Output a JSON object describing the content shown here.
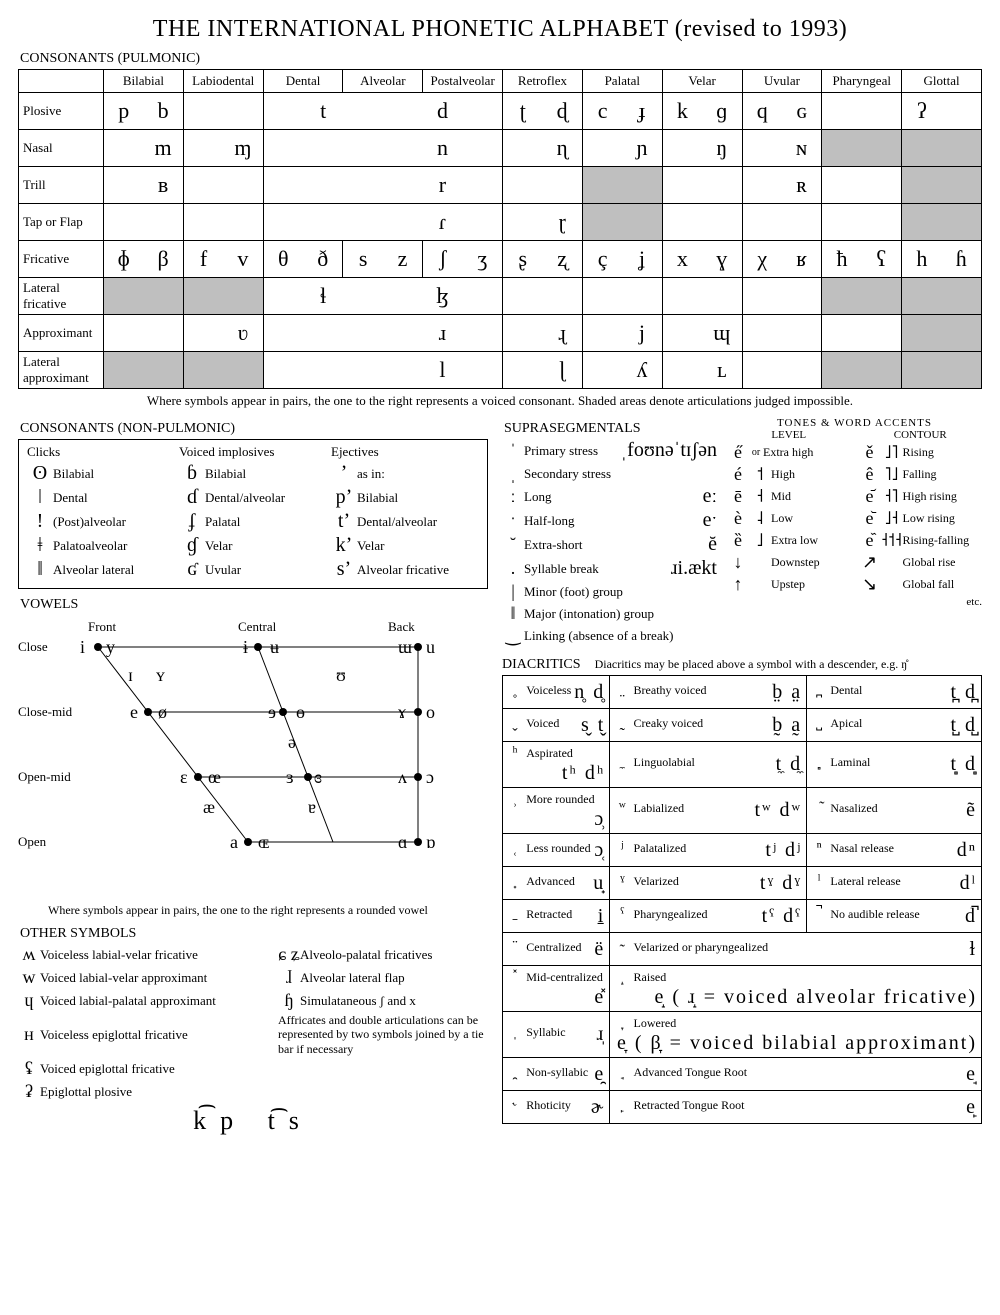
{
  "title": "THE INTERNATIONAL PHONETIC ALPHABET (revised to 1993)",
  "pulmonic": {
    "heading": "CONSONANTS (PULMONIC)",
    "cols": [
      "Bilabial",
      "Labiodental",
      "Dental",
      "Alveolar",
      "Postalveolar",
      "Retroflex",
      "Palatal",
      "Velar",
      "Uvular",
      "Pharyngeal",
      "Glottal"
    ],
    "rows": [
      {
        "label": "Plosive",
        "cells": [
          [
            "p",
            "b"
          ],
          [
            "",
            ""
          ],
          [
            "t",
            "d",
            "span3"
          ],
          null,
          null,
          [
            "ʈ",
            "ɖ"
          ],
          [
            "c",
            "ɟ"
          ],
          [
            "k",
            "ɡ"
          ],
          [
            "q",
            "ɢ"
          ],
          [
            "",
            "",
            "halfshade-r"
          ],
          [
            "ʔ",
            "",
            "halfshade-r"
          ]
        ]
      },
      {
        "label": "Nasal",
        "cells": [
          [
            "",
            "m"
          ],
          [
            "",
            "ɱ"
          ],
          [
            "",
            "n",
            "span3"
          ],
          null,
          null,
          [
            "",
            "ɳ"
          ],
          [
            "",
            "ɲ"
          ],
          [
            "",
            "ŋ"
          ],
          [
            "",
            "ɴ"
          ],
          [
            "",
            "",
            "shade"
          ],
          [
            "",
            "",
            "shade"
          ]
        ]
      },
      {
        "label": "Trill",
        "cells": [
          [
            "",
            "ʙ"
          ],
          [
            "",
            ""
          ],
          [
            "",
            "r",
            "span3"
          ],
          null,
          null,
          [
            "",
            ""
          ],
          [
            "",
            "",
            "shade"
          ],
          [
            "",
            ""
          ],
          [
            "",
            "ʀ"
          ],
          [
            "",
            ""
          ],
          [
            "",
            "",
            "shade"
          ]
        ]
      },
      {
        "label": "Tap or Flap",
        "cells": [
          [
            "",
            ""
          ],
          [
            "",
            ""
          ],
          [
            "",
            "ɾ",
            "span3"
          ],
          null,
          null,
          [
            "",
            "ɽ"
          ],
          [
            "",
            "",
            "shade"
          ],
          [
            "",
            ""
          ],
          [
            "",
            ""
          ],
          [
            "",
            ""
          ],
          [
            "",
            "",
            "shade"
          ]
        ]
      },
      {
        "label": "Fricative",
        "cells": [
          [
            "ɸ",
            "β"
          ],
          [
            "f",
            "v"
          ],
          [
            "θ",
            "ð"
          ],
          [
            "s",
            "z"
          ],
          [
            "ʃ",
            "ʒ"
          ],
          [
            "ʂ",
            "ʐ"
          ],
          [
            "ç",
            "ʝ"
          ],
          [
            "x",
            "ɣ"
          ],
          [
            "χ",
            "ʁ"
          ],
          [
            "ħ",
            "ʕ"
          ],
          [
            "h",
            "ɦ"
          ]
        ]
      },
      {
        "label": "Lateral fricative",
        "cells": [
          [
            "",
            "",
            "shade"
          ],
          [
            "",
            "",
            "shade"
          ],
          [
            "ɬ",
            "ɮ",
            "span3"
          ],
          null,
          null,
          [
            "",
            ""
          ],
          [
            "",
            ""
          ],
          [
            "",
            ""
          ],
          [
            "",
            ""
          ],
          [
            "",
            "",
            "shade"
          ],
          [
            "",
            "",
            "shade"
          ]
        ]
      },
      {
        "label": "Approximant",
        "cells": [
          [
            "",
            ""
          ],
          [
            "",
            "ʋ"
          ],
          [
            "",
            "ɹ",
            "span3"
          ],
          null,
          null,
          [
            "",
            "ɻ"
          ],
          [
            "",
            "j"
          ],
          [
            "",
            "ɰ"
          ],
          [
            "",
            ""
          ],
          [
            "",
            ""
          ],
          [
            "",
            "",
            "shade"
          ]
        ]
      },
      {
        "label": "Lateral approximant",
        "cells": [
          [
            "",
            "",
            "shade"
          ],
          [
            "",
            "",
            "shade"
          ],
          [
            "",
            "l",
            "span3"
          ],
          null,
          null,
          [
            "",
            "ɭ"
          ],
          [
            "",
            "ʎ"
          ],
          [
            "",
            "ʟ"
          ],
          [
            "",
            ""
          ],
          [
            "",
            "",
            "shade"
          ],
          [
            "",
            "",
            "shade"
          ]
        ]
      }
    ],
    "caption": "Where symbols appear in pairs, the one to the right represents a voiced consonant. Shaded areas denote articulations judged impossible."
  },
  "nonpulmonic": {
    "heading": "CONSONANTS (NON-PULMONIC)",
    "clicks": {
      "hdr": "Clicks",
      "rows": [
        [
          "ʘ",
          "Bilabial"
        ],
        [
          "ǀ",
          "Dental"
        ],
        [
          "ǃ",
          "(Post)alveolar"
        ],
        [
          "ǂ",
          "Palatoalveolar"
        ],
        [
          "ǁ",
          "Alveolar lateral"
        ]
      ]
    },
    "implosives": {
      "hdr": "Voiced implosives",
      "rows": [
        [
          "ɓ",
          "Bilabial"
        ],
        [
          "ɗ",
          "Dental/alveolar"
        ],
        [
          "ʄ",
          "Palatal"
        ],
        [
          "ɠ",
          "Velar"
        ],
        [
          "ʛ",
          "Uvular"
        ]
      ]
    },
    "ejectives": {
      "hdr": "Ejectives",
      "asin": "as in:",
      "rows": [
        [
          "pʼ",
          "Bilabial"
        ],
        [
          "tʼ",
          "Dental/alveolar"
        ],
        [
          "kʼ",
          "Velar"
        ],
        [
          "sʼ",
          "Alveolar fricative"
        ]
      ]
    }
  },
  "vowels": {
    "heading": "VOWELS",
    "top_labels": [
      "Front",
      "Central",
      "Back"
    ],
    "left_labels": [
      "Close",
      "Close-mid",
      "Open-mid",
      "Open"
    ],
    "note": "Where symbols appear in pairs, the one to the right represents a rounded vowel"
  },
  "other": {
    "heading": "OTHER SYMBOLS",
    "rows": [
      [
        "ʍ",
        "Voiceless labial-velar fricative",
        "ɕ ʑ",
        "Alveolo-palatal fricatives"
      ],
      [
        "w",
        "Voiced labial-velar approximant",
        "ɺ",
        "Alveolar lateral flap"
      ],
      [
        "ɥ",
        "Voiced labial-palatal approximant",
        "ɧ",
        "Simulataneous ʃ and x"
      ],
      [
        "ʜ",
        "Voiceless epiglottal fricative",
        "",
        ""
      ],
      [
        "ʢ",
        "Voiced epiglottal fricative",
        "",
        ""
      ],
      [
        "ʡ",
        "Epiglottal plosive",
        "",
        ""
      ]
    ],
    "note": "Affricates and double articulations can be represented by two symbols joined by a tie bar if necessary",
    "affricate": "k͡p  t͡s"
  },
  "supra": {
    "heading": "SUPRASEGMENTALS",
    "example1": "ˌfoʊnəˈtɪʃən",
    "list": [
      [
        "ˈ",
        "Primary stress"
      ],
      [
        "ˌ",
        "Secondary stress"
      ],
      [
        "ː",
        "Long",
        "eː"
      ],
      [
        "ˑ",
        "Half-long",
        "eˑ"
      ],
      [
        "˘",
        "Extra-short",
        "ĕ"
      ],
      [
        ".",
        "Syllable break",
        "ɹi.ækt"
      ],
      [
        "|",
        "Minor (foot) group"
      ],
      [
        "‖",
        "Major (intonation) group"
      ],
      [
        "‿",
        "Linking (absence of a break)"
      ]
    ]
  },
  "tones": {
    "heading": "TONES & WORD ACCENTS",
    "level": {
      "hdr": "LEVEL",
      "rows": [
        [
          "e̋",
          "˥",
          "Extra high"
        ],
        [
          "é",
          "˦",
          "High"
        ],
        [
          "ē",
          "˧",
          "Mid"
        ],
        [
          "è",
          "˨",
          "Low"
        ],
        [
          "ȅ",
          "˩",
          "Extra low"
        ],
        [
          "↓",
          "",
          "Downstep"
        ],
        [
          "↑",
          "",
          "Upstep"
        ]
      ],
      "or": "or"
    },
    "contour": {
      "hdr": "CONTOUR",
      "rows": [
        [
          "ě",
          "˩˥",
          "Rising"
        ],
        [
          "ê",
          "˥˩",
          "Falling"
        ],
        [
          "e᷄",
          "˧˥",
          "High rising"
        ],
        [
          "e᷅",
          "˩˧",
          "Low rising"
        ],
        [
          "e᷈",
          "˧˦˧",
          "Rising-falling"
        ],
        [
          "↗",
          "",
          "Global rise"
        ],
        [
          "↘",
          "",
          "Global fall"
        ]
      ],
      "etc": "etc."
    }
  },
  "diacritics": {
    "heading": "DIACRITICS",
    "note": "Diacritics may be placed above a symbol with a descender, e.g. ŋ̊",
    "rows": [
      [
        [
          "̥",
          "Voiceless",
          "n̥ d̥"
        ],
        [
          "̤",
          "Breathy voiced",
          "b̤ a̤"
        ],
        [
          "̪",
          "Dental",
          "t̪ d̪"
        ]
      ],
      [
        [
          "̬",
          "Voiced",
          "s̬ t̬"
        ],
        [
          "̰",
          "Creaky voiced",
          "b̰ a̰"
        ],
        [
          "̺",
          "Apical",
          "t̺ d̺"
        ]
      ],
      [
        [
          "ʰ",
          "Aspirated",
          "tʰ dʰ"
        ],
        [
          "̼",
          "Linguolabial",
          "t̼ d̼"
        ],
        [
          "̻",
          "Laminal",
          "t̻ d̻"
        ]
      ],
      [
        [
          "̹",
          "More rounded",
          "ɔ̹"
        ],
        [
          "ʷ",
          "Labialized",
          "tʷ dʷ"
        ],
        [
          "̃",
          "Nasalized",
          "ẽ"
        ]
      ],
      [
        [
          "̜",
          "Less rounded",
          "ɔ̜"
        ],
        [
          "ʲ",
          "Palatalized",
          "tʲ dʲ"
        ],
        [
          "ⁿ",
          "Nasal release",
          "dⁿ"
        ]
      ],
      [
        [
          "̟",
          "Advanced",
          "u̟"
        ],
        [
          "ˠ",
          "Velarized",
          "tˠ dˠ"
        ],
        [
          "ˡ",
          "Lateral release",
          "dˡ"
        ]
      ],
      [
        [
          "̠",
          "Retracted",
          "i̠"
        ],
        [
          "ˤ",
          "Pharyngealized",
          "tˤ dˤ"
        ],
        [
          "̚",
          "No audible release",
          "d̚"
        ]
      ],
      [
        [
          "̈",
          "Centralized",
          "ë"
        ],
        [
          "̴",
          "Velarized or pharyngealized",
          "ɫ",
          "span2"
        ]
      ],
      [
        [
          "̽",
          "Mid-centralized",
          "e̽"
        ],
        [
          "̝",
          "Raised",
          "e̝  ( ɹ̝ = voiced alveolar fricative)",
          "span2"
        ]
      ],
      [
        [
          "̩",
          "Syllabic",
          "ɹ̩"
        ],
        [
          "̞",
          "Lowered",
          "e̞  ( β̞ = voiced bilabial approximant)",
          "span2"
        ]
      ],
      [
        [
          "̯",
          "Non-syllabic",
          "e̯"
        ],
        [
          "̘",
          "Advanced Tongue Root",
          "e̘",
          "span2"
        ]
      ],
      [
        [
          "˞",
          "Rhoticity",
          "ɚ"
        ],
        [
          "̙",
          "Retracted Tongue Root",
          "e̙",
          "span2"
        ]
      ]
    ]
  }
}
